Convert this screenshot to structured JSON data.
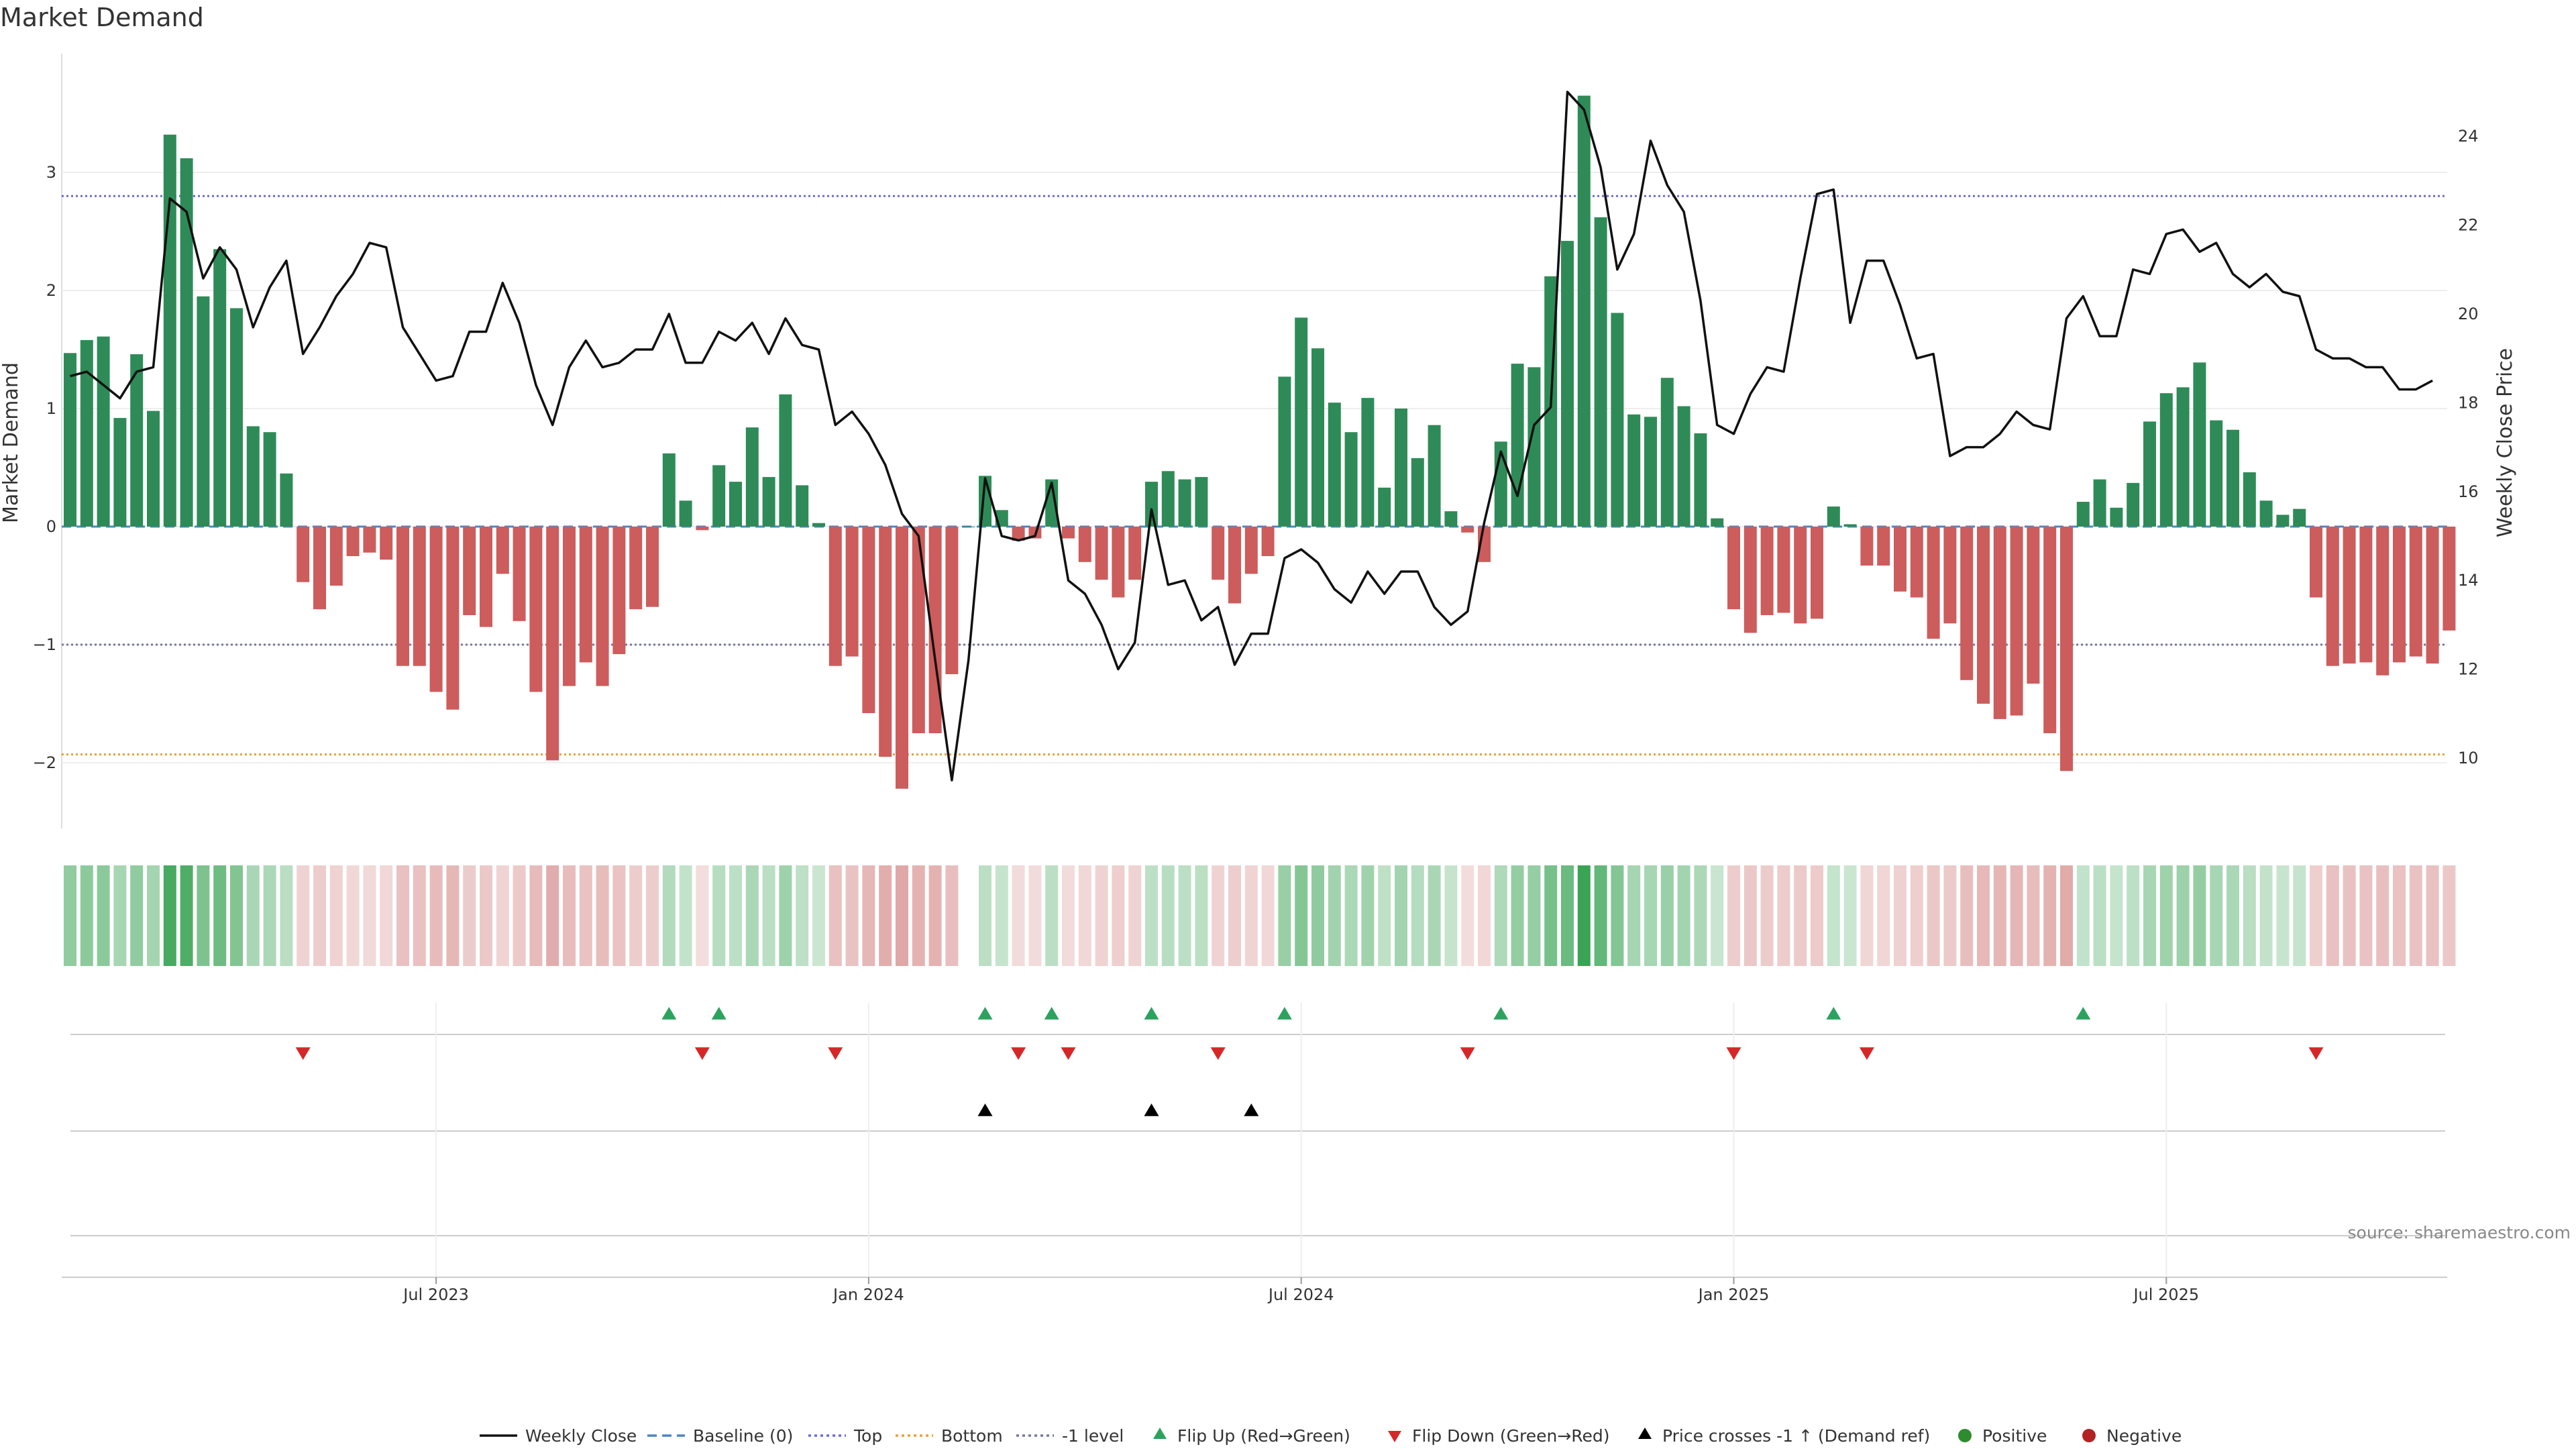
{
  "title": "Market Demand",
  "source_note": "source: sharemaestro.com",
  "colors": {
    "positive_bar": "#2e8b57",
    "negative_bar": "#cd5c5c",
    "close_line": "#111111",
    "baseline": "#4a86c5",
    "top": "#6b6bd6",
    "bottom": "#e8a030",
    "minus1": "#777799",
    "flip_up": "#2ca25f",
    "flip_down": "#d62728",
    "price_cross": "#000000",
    "positive_dot": "#2e8b2e",
    "negative_dot": "#b22222"
  },
  "chart_data": {
    "type": "bar",
    "title": "Market Demand",
    "xlabel": "",
    "ylabel": "Market Demand",
    "ylabel_right": "Weekly Close Price",
    "ylim": [
      -2.55,
      3.9
    ],
    "ylim_right": [
      9.0,
      25.0
    ],
    "y_ticks": [
      -2,
      -1,
      0,
      1,
      2,
      3
    ],
    "y_ticks_right": [
      10,
      12,
      14,
      16,
      18,
      20,
      22,
      24
    ],
    "x_ticks": [
      {
        "label": "Jul 2023",
        "week": 22
      },
      {
        "label": "Jan 2024",
        "week": 48
      },
      {
        "label": "Jul 2024",
        "week": 74
      },
      {
        "label": "Jan 2025",
        "week": 100
      },
      {
        "label": "Jul 2025",
        "week": 126
      }
    ],
    "reference_lines": {
      "top": 2.8,
      "bottom": -1.93,
      "minus1": -1.0,
      "baseline": 0
    },
    "series": [
      {
        "name": "Market Demand",
        "values": [
          1.47,
          1.58,
          1.61,
          0.92,
          1.46,
          0.98,
          3.32,
          3.12,
          1.95,
          2.35,
          1.85,
          0.85,
          0.8,
          0.45,
          -0.47,
          -0.7,
          -0.5,
          -0.25,
          -0.22,
          -0.28,
          -1.18,
          -1.18,
          -1.4,
          -1.55,
          -0.75,
          -0.85,
          -0.4,
          -0.8,
          -1.4,
          -1.98,
          -1.35,
          -1.15,
          -1.35,
          -1.08,
          -0.7,
          -0.68,
          0.62,
          0.22,
          -0.03,
          0.52,
          0.38,
          0.84,
          0.42,
          1.12,
          0.35,
          0.03,
          -1.18,
          -1.1,
          -1.58,
          -1.95,
          -2.22,
          -1.75,
          -1.75,
          -1.25,
          0.0,
          0.43,
          0.14,
          -0.12,
          -0.1,
          0.4,
          -0.1,
          -0.3,
          -0.45,
          -0.6,
          -0.45,
          0.38,
          0.47,
          0.4,
          0.42,
          -0.45,
          -0.65,
          -0.4,
          -0.25,
          1.27,
          1.77,
          1.51,
          1.05,
          0.8,
          1.09,
          0.33,
          1.0,
          0.58,
          0.86,
          0.13,
          -0.05,
          -0.3,
          0.72,
          1.38,
          1.35,
          2.12,
          2.42,
          3.65,
          2.62,
          1.81,
          0.95,
          0.93,
          1.26,
          1.02,
          0.79,
          0.07,
          -0.7,
          -0.9,
          -0.75,
          -0.73,
          -0.82,
          -0.78,
          0.17,
          0.02,
          -0.33,
          -0.33,
          -0.55,
          -0.6,
          -0.95,
          -0.82,
          -1.3,
          -1.5,
          -1.63,
          -1.6,
          -1.33,
          -1.75,
          -2.07,
          0.21,
          0.4,
          0.16,
          0.37,
          0.89,
          1.13,
          1.18,
          1.39,
          0.9,
          0.82,
          0.46,
          0.22,
          0.1,
          0.15,
          -0.6,
          -1.18,
          -1.16,
          -1.15,
          -1.26,
          -1.15,
          -1.1,
          -1.16,
          -0.88
        ]
      },
      {
        "name": "Weekly Close",
        "axis": "right",
        "values": [
          18.6,
          18.7,
          18.4,
          18.1,
          18.7,
          18.8,
          22.6,
          22.3,
          20.8,
          21.5,
          21.0,
          19.7,
          20.6,
          21.2,
          19.1,
          19.7,
          20.4,
          20.9,
          21.6,
          21.5,
          19.7,
          19.1,
          18.5,
          18.6,
          19.6,
          19.6,
          20.7,
          19.8,
          18.4,
          17.5,
          18.8,
          19.4,
          18.8,
          18.9,
          19.2,
          19.2,
          20.0,
          18.9,
          18.9,
          19.6,
          19.4,
          19.8,
          19.1,
          19.9,
          19.3,
          19.2,
          17.5,
          17.8,
          17.3,
          16.6,
          15.5,
          15.0,
          12.2,
          9.5,
          12.2,
          16.3,
          15.0,
          14.9,
          15.0,
          16.2,
          14.0,
          13.7,
          13.0,
          12.0,
          12.6,
          15.6,
          13.9,
          14.0,
          13.1,
          13.4,
          12.1,
          12.8,
          12.8,
          14.5,
          14.7,
          14.4,
          13.8,
          13.5,
          14.2,
          13.7,
          14.2,
          14.2,
          13.4,
          13.0,
          13.3,
          15.3,
          16.9,
          15.9,
          17.5,
          17.9,
          25.0,
          24.6,
          23.3,
          21.0,
          21.8,
          23.9,
          22.9,
          22.3,
          20.3,
          17.5,
          17.3,
          18.2,
          18.8,
          18.7,
          20.8,
          22.7,
          22.8,
          19.8,
          21.2,
          21.2,
          20.2,
          19.0,
          19.1,
          16.8,
          17.0,
          17.0,
          17.3,
          17.8,
          17.5,
          17.4,
          19.9,
          20.4,
          19.5,
          19.5,
          21.0,
          20.9,
          21.8,
          21.9,
          21.4,
          21.6,
          20.9,
          20.6,
          20.9,
          20.5,
          20.4,
          19.2,
          19.0,
          19.0,
          18.8,
          18.8,
          18.3,
          18.3,
          18.5
        ]
      }
    ],
    "flip_up_weeks": [
      36,
      39,
      55,
      59,
      65,
      73,
      86,
      106,
      121
    ],
    "flip_down_weeks": [
      14,
      38,
      46,
      57,
      60,
      69,
      84,
      100,
      108,
      135
    ],
    "price_cross_weeks": [
      55,
      65,
      71
    ]
  },
  "legend": [
    {
      "label": "Weekly Close",
      "symbol": "line-solid"
    },
    {
      "label": "Baseline (0)",
      "symbol": "line-dashed"
    },
    {
      "label": "Top",
      "symbol": "line-dotted-top"
    },
    {
      "label": "Bottom",
      "symbol": "line-dotted-bottom"
    },
    {
      "label": "-1 level",
      "symbol": "line-dotted-minus1"
    },
    {
      "label": "Flip Up (Red→Green)",
      "symbol": "triangle-up-green"
    },
    {
      "label": "Flip Down (Green→Red)",
      "symbol": "triangle-down-red"
    },
    {
      "label": "Price crosses -1 ↑ (Demand ref)",
      "symbol": "triangle-up-black"
    },
    {
      "label": "Positive",
      "symbol": "dot-green"
    },
    {
      "label": "Negative",
      "symbol": "dot-red"
    }
  ]
}
